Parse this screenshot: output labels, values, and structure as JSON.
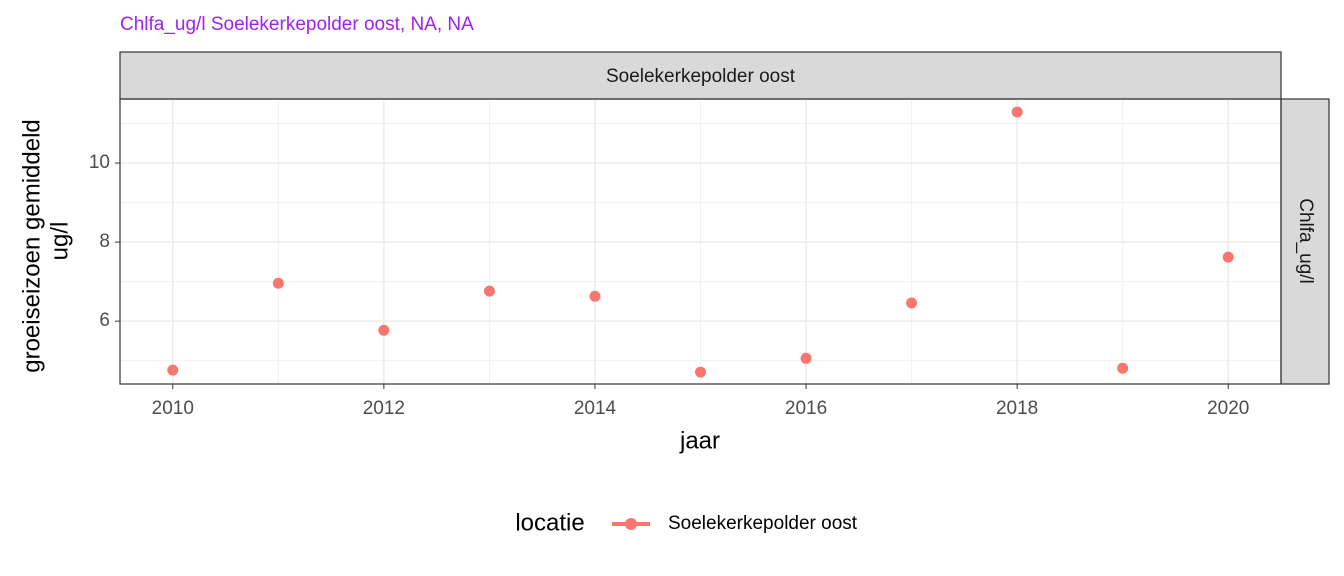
{
  "chart_data": {
    "type": "scatter",
    "title": "Chlfa_ug/l Soelekerkepolder oost, NA, NA",
    "facet_top": "Soelekerkepolder oost",
    "facet_right": "Chlfa_ug/l",
    "x_label": "jaar",
    "y_label": [
      "groeiseizoen gemiddeld",
      "ug/l"
    ],
    "legend_title": "locatie",
    "x": [
      2010,
      2011,
      2012,
      2013,
      2014,
      2015,
      2016,
      2017,
      2018,
      2019,
      2020
    ],
    "series": [
      {
        "name": "Soelekerkepolder oost",
        "color": "#f8766d",
        "values": [
          4.76,
          6.96,
          5.77,
          6.76,
          6.63,
          4.71,
          5.06,
          6.46,
          11.29,
          4.81,
          7.62
        ]
      }
    ],
    "xlim": [
      2009.5,
      2020.5
    ],
    "xticks": [
      2010,
      2012,
      2014,
      2016,
      2018,
      2020
    ],
    "ylim": [
      4.41,
      11.62
    ],
    "yticks": [
      6,
      8,
      10
    ],
    "grid": true,
    "minor_grid": true,
    "legend": "bottom"
  }
}
